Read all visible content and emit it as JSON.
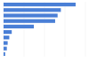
{
  "chart_data": {
    "type": "bar",
    "orientation": "horizontal",
    "categories": [
      null,
      null,
      null,
      null,
      null,
      null,
      null,
      null,
      null,
      null
    ],
    "values": [
      88,
      70,
      66,
      63,
      37,
      10,
      7,
      5,
      4,
      2
    ],
    "color": "#4a7fd6",
    "xlim": [
      0,
      100
    ],
    "xticks": [
      0,
      25,
      50,
      75,
      100
    ],
    "grid": true,
    "tick_labels": false
  }
}
